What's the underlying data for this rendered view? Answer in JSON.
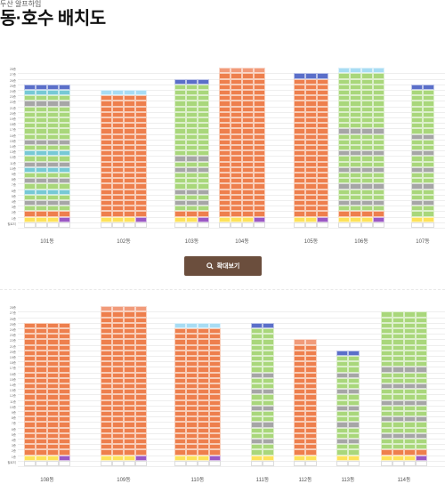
{
  "header": {
    "subtitle": "두산 알프하임",
    "title": "동·호수 배치도"
  },
  "zoom_button": {
    "label": "확대보기",
    "icon": "search-icon"
  },
  "colors": {
    "blue": "#5b6fc9",
    "light_blue": "#a8dcf3",
    "teal": "#77c9d5",
    "green": "#a9d77b",
    "orange": "#ee7f4d",
    "salmon": "#f19b7a",
    "gray": "#a6a6a6",
    "yellow": "#fde25a",
    "purple": "#9b59c4",
    "white": "#ffffff"
  },
  "floor_labels": [
    "28층",
    "27층",
    "26층",
    "25층",
    "24층",
    "23층",
    "22층",
    "21층",
    "20층",
    "19층",
    "18층",
    "17층",
    "16층",
    "15층",
    "14층",
    "13층",
    "12층",
    "11층",
    "10층",
    "9층",
    "8층",
    "7층",
    "6층",
    "5층",
    "4층",
    "3층",
    "2층",
    "1층",
    "필로티"
  ],
  "rows": [
    {
      "buildings": [
        {
          "name": "101동",
          "floors_top": 25,
          "units": 4,
          "palette": [
            "teal",
            "green",
            "gray",
            "green",
            "green",
            "green",
            "green",
            "green",
            "green",
            "gray",
            "green",
            "teal",
            "green",
            "gray",
            "teal",
            "green",
            "gray",
            "green",
            "teal",
            "green",
            "gray",
            "green",
            "orange",
            "yellow"
          ],
          "top_color": "blue"
        },
        {
          "name": "102동",
          "floors_top": 24,
          "units": 4,
          "palette": [
            "orange",
            "orange",
            "orange",
            "orange",
            "orange",
            "orange",
            "orange",
            "orange",
            "orange",
            "orange",
            "orange",
            "orange",
            "orange",
            "orange",
            "orange",
            "orange",
            "orange",
            "orange",
            "orange",
            "orange",
            "orange",
            "orange",
            "orange",
            "yellow"
          ],
          "top_color": "light_blue"
        },
        {
          "name": "103동",
          "floors_top": 26,
          "units": 3,
          "palette": [
            "green",
            "green",
            "green",
            "green",
            "green",
            "green",
            "green",
            "green",
            "green",
            "green",
            "green",
            "green",
            "green",
            "gray",
            "green",
            "gray",
            "green",
            "green",
            "green",
            "gray",
            "green",
            "gray",
            "green",
            "orange",
            "yellow"
          ],
          "top_color": "blue"
        },
        {
          "name": "104동",
          "floors_top": 28,
          "units": 4,
          "palette": [
            "orange",
            "orange",
            "orange",
            "orange",
            "orange",
            "orange",
            "orange",
            "orange",
            "orange",
            "orange",
            "orange",
            "orange",
            "orange",
            "orange",
            "orange",
            "orange",
            "orange",
            "orange",
            "orange",
            "orange",
            "orange",
            "orange",
            "orange",
            "orange",
            "orange",
            "orange",
            "yellow"
          ],
          "top_color": "salmon"
        },
        {
          "name": "105동",
          "floors_top": 27,
          "units": 3,
          "palette": [
            "orange",
            "orange",
            "orange",
            "orange",
            "orange",
            "orange",
            "orange",
            "orange",
            "orange",
            "orange",
            "orange",
            "orange",
            "orange",
            "orange",
            "orange",
            "orange",
            "orange",
            "orange",
            "orange",
            "orange",
            "orange",
            "orange",
            "orange",
            "orange",
            "orange",
            "yellow"
          ],
          "top_color": "blue"
        },
        {
          "name": "106동",
          "floors_top": 28,
          "units": 4,
          "palette": [
            "green",
            "green",
            "green",
            "green",
            "green",
            "green",
            "green",
            "green",
            "green",
            "gray",
            "green",
            "green",
            "green",
            "gray",
            "green",
            "green",
            "gray",
            "green",
            "green",
            "gray",
            "green",
            "green",
            "gray",
            "green",
            "orange",
            "yellow"
          ],
          "top_color": "light_blue"
        },
        {
          "name": "107동",
          "floors_top": 25,
          "units": 2,
          "palette": [
            "green",
            "green",
            "green",
            "green",
            "green",
            "green",
            "green",
            "green",
            "gray",
            "green",
            "green",
            "gray",
            "green",
            "green",
            "gray",
            "green",
            "green",
            "gray",
            "green",
            "green",
            "gray",
            "green",
            "green",
            "yellow"
          ],
          "top_color": "blue"
        }
      ]
    },
    {
      "buildings": [
        {
          "name": "108동",
          "floors_top": 25,
          "units": 4,
          "palette": [
            "orange",
            "orange",
            "orange",
            "orange",
            "orange",
            "orange",
            "orange",
            "orange",
            "orange",
            "orange",
            "orange",
            "orange",
            "orange",
            "orange",
            "orange",
            "orange",
            "orange",
            "orange",
            "orange",
            "orange",
            "orange",
            "orange",
            "orange",
            "yellow"
          ],
          "top_color": "orange"
        },
        {
          "name": "109동",
          "floors_top": 28,
          "units": 4,
          "palette": [
            "orange",
            "orange",
            "orange",
            "orange",
            "orange",
            "orange",
            "orange",
            "orange",
            "orange",
            "orange",
            "orange",
            "orange",
            "orange",
            "orange",
            "orange",
            "orange",
            "orange",
            "orange",
            "orange",
            "orange",
            "orange",
            "orange",
            "orange",
            "orange",
            "orange",
            "orange",
            "yellow"
          ],
          "top_color": "salmon"
        },
        {
          "name": "110동",
          "floors_top": 25,
          "units": 4,
          "palette": [
            "orange",
            "orange",
            "orange",
            "orange",
            "orange",
            "orange",
            "orange",
            "orange",
            "orange",
            "orange",
            "orange",
            "orange",
            "orange",
            "orange",
            "orange",
            "orange",
            "orange",
            "orange",
            "orange",
            "orange",
            "orange",
            "orange",
            "orange",
            "yellow"
          ],
          "top_color": "light_blue"
        },
        {
          "name": "111동",
          "floors_top": 25,
          "units": 2,
          "palette": [
            "green",
            "green",
            "green",
            "green",
            "green",
            "green",
            "green",
            "green",
            "gray",
            "green",
            "green",
            "gray",
            "green",
            "green",
            "gray",
            "green",
            "green",
            "gray",
            "green",
            "green",
            "gray",
            "green",
            "green",
            "yellow"
          ],
          "top_color": "blue"
        },
        {
          "name": "112동",
          "floors_top": 22,
          "units": 2,
          "palette": [
            "orange",
            "orange",
            "orange",
            "orange",
            "orange",
            "orange",
            "orange",
            "orange",
            "orange",
            "orange",
            "orange",
            "orange",
            "orange",
            "orange",
            "orange",
            "orange",
            "orange",
            "orange",
            "orange",
            "orange",
            "yellow"
          ],
          "top_color": "salmon"
        },
        {
          "name": "113동",
          "floors_top": 20,
          "units": 2,
          "palette": [
            "green",
            "green",
            "green",
            "gray",
            "green",
            "green",
            "gray",
            "green",
            "green",
            "gray",
            "green",
            "green",
            "gray",
            "green",
            "green",
            "gray",
            "green",
            "green",
            "yellow"
          ],
          "top_color": "blue"
        },
        {
          "name": "114동",
          "floors_top": 27,
          "units": 4,
          "palette": [
            "green",
            "green",
            "green",
            "green",
            "green",
            "green",
            "green",
            "green",
            "green",
            "gray",
            "green",
            "green",
            "gray",
            "green",
            "green",
            "gray",
            "green",
            "green",
            "gray",
            "green",
            "green",
            "gray",
            "green",
            "green",
            "orange",
            "yellow"
          ],
          "top_color": "green"
        }
      ]
    }
  ]
}
